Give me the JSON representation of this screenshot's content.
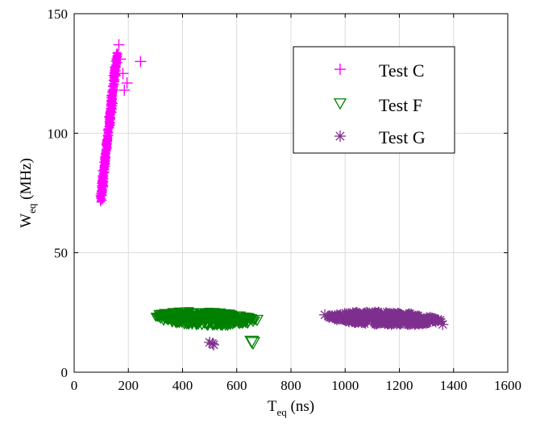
{
  "chart_data": {
    "type": "scatter",
    "title": "",
    "xlabel": {
      "base": "T",
      "sub": "eq",
      "unit": " (ns)"
    },
    "ylabel": {
      "base": "W",
      "sub": "eq",
      "unit": " (MHz)"
    },
    "xlim": [
      0,
      1600
    ],
    "ylim": [
      0,
      150
    ],
    "xticks": [
      0,
      200,
      400,
      600,
      800,
      1000,
      1200,
      1400,
      1600
    ],
    "yticks": [
      0,
      50,
      100,
      150
    ],
    "grid": true,
    "legend_position": "top-right",
    "series": [
      {
        "name": "Test C",
        "marker": "plus",
        "color": "#ff00ff",
        "cluster": {
          "x_range": [
            90,
            200
          ],
          "y_range": [
            72,
            138
          ],
          "correlation": "positive",
          "count": 500
        },
        "points": [
          [
            245,
            130
          ],
          [
            165,
            137
          ],
          [
            170,
            131
          ],
          [
            195,
            121
          ],
          [
            185,
            118
          ],
          [
            180,
            125
          ],
          [
            100,
            74
          ],
          [
            105,
            78
          ]
        ]
      },
      {
        "name": "Test F",
        "marker": "triangle-down",
        "color": "#008000",
        "cluster": {
          "x_range": [
            280,
            680
          ],
          "y_range": [
            19,
            26
          ],
          "count": 480
        },
        "points": [
          [
            655,
            13
          ],
          [
            660,
            12.5
          ],
          [
            675,
            22
          ],
          [
            640,
            21
          ],
          [
            620,
            22
          ]
        ]
      },
      {
        "name": "Test G",
        "marker": "asterisk",
        "color": "#7e2f8e",
        "cluster": {
          "x_range": [
            920,
            1370
          ],
          "y_range": [
            19,
            26
          ],
          "count": 420
        },
        "points": [
          [
            510,
            12
          ],
          [
            500,
            12.5
          ],
          [
            515,
            11.5
          ],
          [
            925,
            24
          ],
          [
            1360,
            20
          ]
        ]
      }
    ]
  }
}
